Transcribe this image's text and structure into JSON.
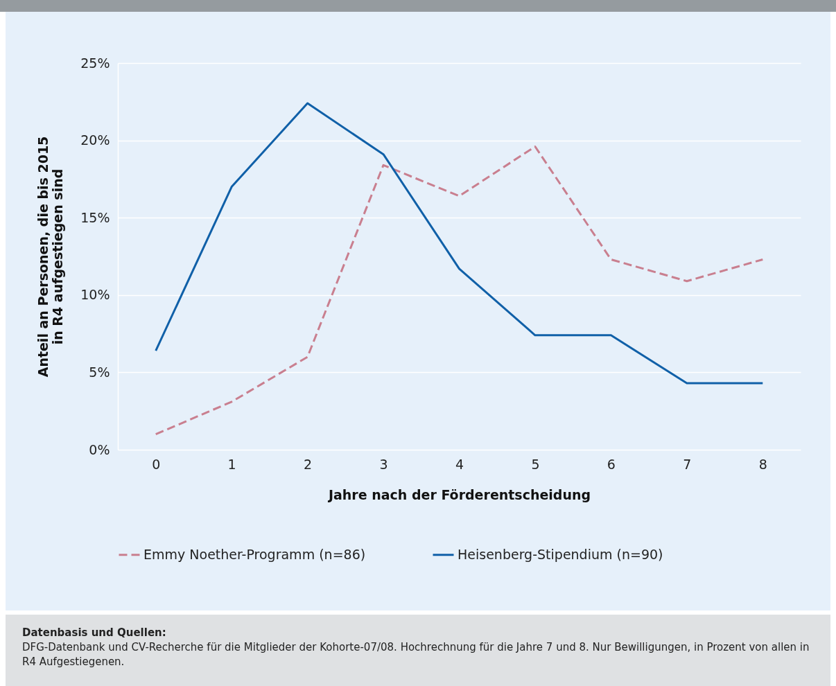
{
  "chart_data": {
    "type": "line",
    "xlabel": "Jahre nach der Förderentscheidung",
    "ylabel": "Anteil an Personen, die bis 2015\nin R4 aufgestiegen sind",
    "categories": [
      "0",
      "1",
      "2",
      "3",
      "4",
      "5",
      "6",
      "7",
      "8"
    ],
    "series": [
      {
        "name": "Emmy Noether-Programm (n=86)",
        "color": "#c97f8f",
        "line_style": "dashed",
        "values": [
          1.0,
          3.1,
          6.0,
          18.4,
          16.4,
          19.6,
          12.3,
          10.9,
          12.3
        ]
      },
      {
        "name": "Heisenberg-Stipendium (n=90)",
        "color": "#1060a8",
        "line_style": "solid",
        "values": [
          6.4,
          17.0,
          22.4,
          19.1,
          11.7,
          7.4,
          7.4,
          4.3,
          4.3
        ]
      }
    ],
    "ylim": [
      0,
      25
    ],
    "yticks": [
      {
        "value": 0,
        "label": "0%"
      },
      {
        "value": 5,
        "label": "5%"
      },
      {
        "value": 10,
        "label": "10%"
      },
      {
        "value": 15,
        "label": "15%"
      },
      {
        "value": 20,
        "label": "20%"
      },
      {
        "value": 25,
        "label": "25%"
      }
    ],
    "grid": "y",
    "legend": "bottom",
    "marker": "none",
    "annotations": [
      "Datenbasis und Quellen:",
      "DFG-Datenbank und CV-Recherche für die Mitglieder der Kohorte-07/08. Hochrechnung für die Jahre 7 und 8. Nur Bewilligungen, in Prozent von allen in R4 Aufgestiegenen."
    ]
  }
}
